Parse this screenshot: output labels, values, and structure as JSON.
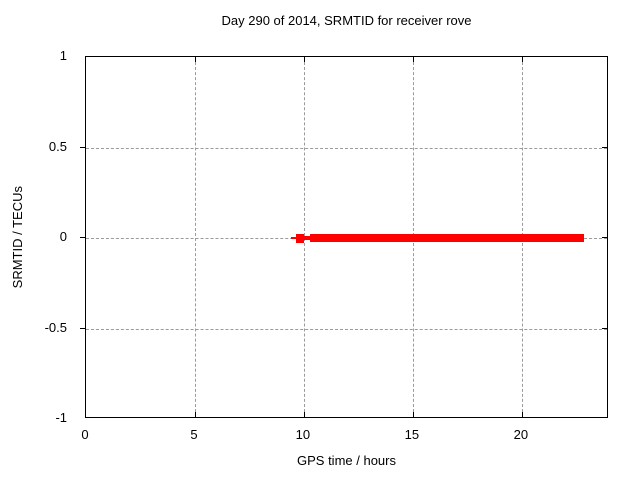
{
  "chart_data": {
    "type": "line",
    "title": "Day 290 of 2014, SRMTID for receiver rove",
    "xlabel": "GPS time / hours",
    "ylabel": "SRMTID / TECUs",
    "xlim": [
      0,
      24
    ],
    "ylim": [
      -1,
      1
    ],
    "xtick_values": [
      0,
      5,
      10,
      15,
      20
    ],
    "xtick_labels": [
      "0",
      "5",
      "10",
      "15",
      "20"
    ],
    "ytick_values": [
      1,
      0.5,
      0,
      -0.5,
      -1
    ],
    "ytick_labels": [
      "1",
      "0.5",
      "0",
      "-0.5",
      "-1"
    ],
    "grid": true,
    "legend": "none",
    "colors": {
      "series": "#ff0000",
      "grid": "#9b9b9b",
      "axis": "#000000",
      "background": "#ffffff",
      "text": "#000000"
    },
    "series": [
      {
        "name": "SRMTID",
        "color": "#ff0000",
        "y_value": 0,
        "segments": [
          {
            "x_start": 9.43,
            "x_end": 9.65,
            "y": 0,
            "style": "thin"
          },
          {
            "x_start": 9.65,
            "x_end": 10.0,
            "y": 0,
            "style": "point"
          },
          {
            "x_start": 10.0,
            "x_end": 10.3,
            "y": 0,
            "style": "medium"
          },
          {
            "x_start": 10.3,
            "x_end": 22.85,
            "y": 0,
            "style": "thick"
          }
        ]
      }
    ]
  }
}
